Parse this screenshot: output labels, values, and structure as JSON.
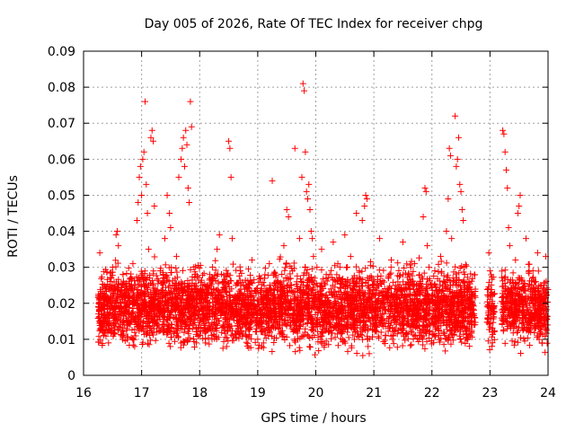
{
  "chart_data": {
    "type": "scatter",
    "title": "Day 005 of 2026, Rate Of TEC Index for receiver chpg",
    "xlabel": "GPS time / hours",
    "ylabel": "ROTI / TECUs",
    "xlim": [
      16,
      24
    ],
    "ylim": [
      0,
      0.09
    ],
    "xticks": [
      16,
      17,
      18,
      19,
      20,
      21,
      22,
      23,
      24
    ],
    "yticks": [
      0,
      0.01,
      0.02,
      0.03,
      0.04,
      0.05,
      0.06,
      0.07,
      0.08,
      0.09
    ],
    "xtick_labels": [
      "16",
      "17",
      "18",
      "19",
      "20",
      "21",
      "22",
      "23",
      "24"
    ],
    "ytick_labels": [
      "0",
      "0.01",
      "0.02",
      "0.03",
      "0.04",
      "0.05",
      "0.06",
      "0.07",
      "0.08",
      "0.09"
    ],
    "grid": true,
    "marker": "plus",
    "color": "#ff0000",
    "series": [
      {
        "name": "ROTI",
        "points": [
          [
            16.28,
            0.034
          ],
          [
            16.3,
            0.018
          ],
          [
            16.33,
            0.012
          ],
          [
            16.36,
            0.025
          ],
          [
            16.4,
            0.015
          ],
          [
            16.43,
            0.009
          ],
          [
            16.46,
            0.021
          ],
          [
            16.5,
            0.03
          ],
          [
            16.53,
            0.017
          ],
          [
            16.56,
            0.039
          ],
          [
            16.58,
            0.04
          ],
          [
            16.6,
            0.036
          ],
          [
            16.62,
            0.022
          ],
          [
            16.65,
            0.011
          ],
          [
            16.68,
            0.028
          ],
          [
            16.72,
            0.019
          ],
          [
            16.75,
            0.013
          ],
          [
            16.78,
            0.026
          ],
          [
            16.82,
            0.015
          ],
          [
            16.85,
            0.031
          ],
          [
            16.88,
            0.008
          ],
          [
            16.9,
            0.02
          ],
          [
            16.92,
            0.043
          ],
          [
            16.94,
            0.048
          ],
          [
            16.96,
            0.055
          ],
          [
            16.98,
            0.058
          ],
          [
            17.0,
            0.05
          ],
          [
            17.02,
            0.06
          ],
          [
            17.04,
            0.062
          ],
          [
            17.06,
            0.076
          ],
          [
            17.08,
            0.053
          ],
          [
            17.1,
            0.045
          ],
          [
            17.12,
            0.035
          ],
          [
            17.14,
            0.027
          ],
          [
            17.16,
            0.066
          ],
          [
            17.18,
            0.068
          ],
          [
            17.2,
            0.065
          ],
          [
            17.22,
            0.047
          ],
          [
            17.25,
            0.022
          ],
          [
            17.28,
            0.014
          ],
          [
            17.32,
            0.029
          ],
          [
            17.36,
            0.018
          ],
          [
            17.4,
            0.038
          ],
          [
            17.44,
            0.05
          ],
          [
            17.48,
            0.045
          ],
          [
            17.5,
            0.041
          ],
          [
            17.53,
            0.025
          ],
          [
            17.56,
            0.012
          ],
          [
            17.6,
            0.033
          ],
          [
            17.64,
            0.055
          ],
          [
            17.68,
            0.06
          ],
          [
            17.7,
            0.063
          ],
          [
            17.72,
            0.066
          ],
          [
            17.74,
            0.058
          ],
          [
            17.76,
            0.068
          ],
          [
            17.78,
            0.064
          ],
          [
            17.8,
            0.052
          ],
          [
            17.82,
            0.048
          ],
          [
            17.84,
            0.076
          ],
          [
            17.86,
            0.069
          ],
          [
            17.9,
            0.03
          ],
          [
            17.94,
            0.019
          ],
          [
            17.98,
            0.011
          ],
          [
            18.02,
            0.024
          ],
          [
            18.06,
            0.015
          ],
          [
            18.1,
            0.009
          ],
          [
            18.14,
            0.02
          ],
          [
            18.18,
            0.013
          ],
          [
            18.22,
            0.027
          ],
          [
            18.26,
            0.017
          ],
          [
            18.3,
            0.035
          ],
          [
            18.34,
            0.039
          ],
          [
            18.38,
            0.022
          ],
          [
            18.42,
            0.014
          ],
          [
            18.46,
            0.018
          ],
          [
            18.5,
            0.065
          ],
          [
            18.52,
            0.063
          ],
          [
            18.54,
            0.055
          ],
          [
            18.56,
            0.038
          ],
          [
            18.6,
            0.021
          ],
          [
            18.65,
            0.012
          ],
          [
            18.7,
            0.029
          ],
          [
            18.75,
            0.016
          ],
          [
            18.8,
            0.025
          ],
          [
            18.85,
            0.011
          ],
          [
            18.9,
            0.032
          ],
          [
            18.95,
            0.019
          ],
          [
            19.0,
            0.014
          ],
          [
            19.05,
            0.027
          ],
          [
            19.1,
            0.009
          ],
          [
            19.15,
            0.022
          ],
          [
            19.2,
            0.031
          ],
          [
            19.25,
            0.054
          ],
          [
            19.3,
            0.017
          ],
          [
            19.35,
            0.026
          ],
          [
            19.4,
            0.012
          ],
          [
            19.45,
            0.036
          ],
          [
            19.5,
            0.046
          ],
          [
            19.53,
            0.044
          ],
          [
            19.56,
            0.02
          ],
          [
            19.6,
            0.029
          ],
          [
            19.64,
            0.063
          ],
          [
            19.68,
            0.015
          ],
          [
            19.72,
            0.038
          ],
          [
            19.76,
            0.055
          ],
          [
            19.78,
            0.081
          ],
          [
            19.8,
            0.079
          ],
          [
            19.82,
            0.062
          ],
          [
            19.84,
            0.051
          ],
          [
            19.86,
            0.049
          ],
          [
            19.88,
            0.053
          ],
          [
            19.9,
            0.046
          ],
          [
            19.92,
            0.04
          ],
          [
            19.94,
            0.038
          ],
          [
            19.96,
            0.033
          ],
          [
            19.98,
            0.027
          ],
          [
            20.02,
            0.03
          ],
          [
            20.06,
            0.021
          ],
          [
            20.1,
            0.035
          ],
          [
            20.14,
            0.018
          ],
          [
            20.18,
            0.028
          ],
          [
            20.22,
            0.012
          ],
          [
            20.26,
            0.024
          ],
          [
            20.3,
            0.037
          ],
          [
            20.34,
            0.02
          ],
          [
            20.38,
            0.031
          ],
          [
            20.42,
            0.015
          ],
          [
            20.46,
            0.026
          ],
          [
            20.5,
            0.039
          ],
          [
            20.55,
            0.022
          ],
          [
            20.6,
            0.033
          ],
          [
            20.65,
            0.018
          ],
          [
            20.7,
            0.045
          ],
          [
            20.75,
            0.029
          ],
          [
            20.8,
            0.043
          ],
          [
            20.84,
            0.047
          ],
          [
            20.86,
            0.05
          ],
          [
            20.88,
            0.049
          ],
          [
            20.9,
            0.008
          ],
          [
            20.92,
            0.006
          ],
          [
            20.95,
            0.018
          ],
          [
            21.0,
            0.025
          ],
          [
            21.05,
            0.014
          ],
          [
            21.1,
            0.038
          ],
          [
            21.15,
            0.022
          ],
          [
            21.2,
            0.011
          ],
          [
            21.25,
            0.027
          ],
          [
            21.3,
            0.032
          ],
          [
            21.35,
            0.016
          ],
          [
            21.4,
            0.024
          ],
          [
            21.45,
            0.013
          ],
          [
            21.5,
            0.037
          ],
          [
            21.55,
            0.021
          ],
          [
            21.6,
            0.028
          ],
          [
            21.65,
            0.012
          ],
          [
            21.7,
            0.031
          ],
          [
            21.75,
            0.019
          ],
          [
            21.8,
            0.026
          ],
          [
            21.85,
            0.044
          ],
          [
            21.88,
            0.052
          ],
          [
            21.9,
            0.051
          ],
          [
            21.92,
            0.036
          ],
          [
            21.95,
            0.03
          ],
          [
            22.0,
            0.022
          ],
          [
            22.05,
            0.029
          ],
          [
            22.1,
            0.018
          ],
          [
            22.15,
            0.033
          ],
          [
            22.2,
            0.026
          ],
          [
            22.25,
            0.04
          ],
          [
            22.28,
            0.049
          ],
          [
            22.3,
            0.063
          ],
          [
            22.32,
            0.061
          ],
          [
            22.34,
            0.038
          ],
          [
            22.36,
            0.025
          ],
          [
            22.4,
            0.072
          ],
          [
            22.42,
            0.058
          ],
          [
            22.44,
            0.06
          ],
          [
            22.46,
            0.066
          ],
          [
            22.48,
            0.053
          ],
          [
            22.5,
            0.051
          ],
          [
            22.52,
            0.046
          ],
          [
            22.54,
            0.043
          ],
          [
            22.56,
            0.03
          ],
          [
            22.58,
            0.02
          ],
          [
            22.6,
            0.013
          ],
          [
            22.63,
            0.024
          ],
          [
            22.66,
            0.011
          ],
          [
            22.68,
            0.017
          ],
          [
            22.98,
            0.034
          ],
          [
            23.0,
            0.029
          ],
          [
            23.02,
            0.018
          ],
          [
            23.04,
            0.012
          ],
          [
            23.22,
            0.068
          ],
          [
            23.24,
            0.067
          ],
          [
            23.26,
            0.062
          ],
          [
            23.28,
            0.057
          ],
          [
            23.3,
            0.052
          ],
          [
            23.32,
            0.041
          ],
          [
            23.34,
            0.036
          ],
          [
            23.36,
            0.022
          ],
          [
            23.4,
            0.015
          ],
          [
            23.44,
            0.032
          ],
          [
            23.48,
            0.045
          ],
          [
            23.5,
            0.047
          ],
          [
            23.52,
            0.05
          ],
          [
            23.54,
            0.027
          ],
          [
            23.58,
            0.018
          ],
          [
            23.62,
            0.038
          ],
          [
            23.66,
            0.024
          ],
          [
            23.7,
            0.012
          ],
          [
            23.74,
            0.029
          ],
          [
            23.78,
            0.016
          ],
          [
            23.82,
            0.034
          ],
          [
            23.86,
            0.021
          ],
          [
            23.9,
            0.009
          ],
          [
            23.93,
            0.025
          ],
          [
            23.96,
            0.033
          ],
          [
            23.99,
            0.014
          ]
        ]
      }
    ],
    "dense_band": {
      "x_ranges": [
        [
          16.25,
          22.75
        ],
        [
          22.95,
          23.08
        ],
        [
          23.2,
          24.0
        ]
      ],
      "y_center": 0.019,
      "y_spread": 0.009,
      "n_points": 4800
    }
  }
}
